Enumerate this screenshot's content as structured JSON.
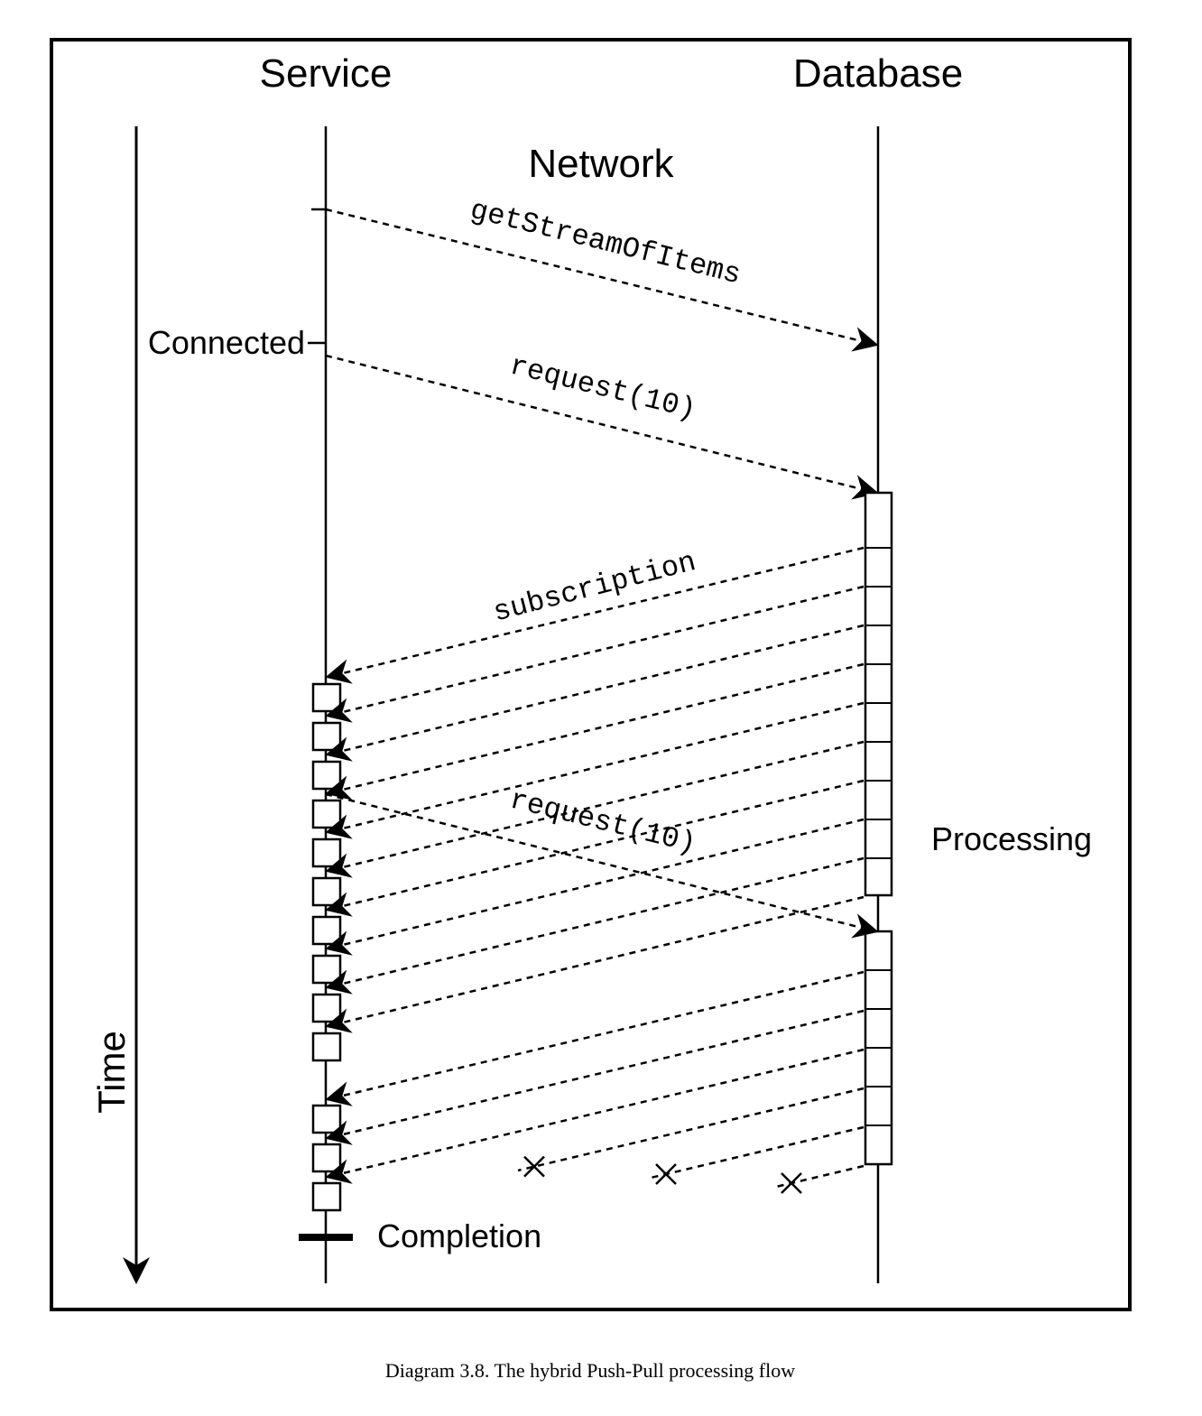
{
  "lifelines": {
    "service": "Service",
    "database": "Database",
    "network": "Network"
  },
  "axis": {
    "time": "Time"
  },
  "labels": {
    "connected": "Connected",
    "processing": "Processing",
    "completion": "Completion"
  },
  "messages": {
    "get_stream": "getStreamOfItems",
    "request_first": "request(10)",
    "subscription": "subscription",
    "request_second": "request(10)"
  },
  "caption": "Diagram 3.8. The hybrid Push-Pull processing flow",
  "counts": {
    "first_batch_items": 10,
    "second_batch_received": 3,
    "second_batch_lost": 3
  }
}
